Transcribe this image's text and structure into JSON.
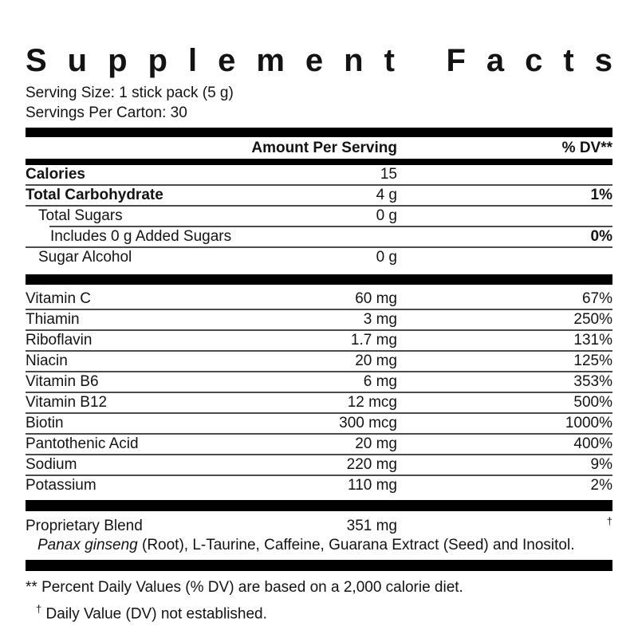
{
  "title": {
    "word1": "Supplement",
    "word2": "Facts"
  },
  "serving_info": {
    "serving_size": "Serving Size: 1 stick pack (5 g)",
    "servings_per_carton": "Servings Per Carton: 30"
  },
  "column_headers": {
    "amount": "Amount Per Serving",
    "dv": "% DV**"
  },
  "nutrient_rows": [
    {
      "name": "Calories",
      "amount": "15",
      "dv": "",
      "bold_name": true,
      "bold_dv": false,
      "indent": 0,
      "divider": "none"
    },
    {
      "name": "Total Carbohydrate",
      "amount": "4 g",
      "dv": "1%",
      "bold_name": true,
      "bold_dv": true,
      "indent": 0,
      "divider": "full"
    },
    {
      "name": "Total Sugars",
      "amount": "0 g",
      "dv": "",
      "bold_name": false,
      "bold_dv": false,
      "indent": 1,
      "divider": "full"
    },
    {
      "name": "Includes 0 g Added Sugars",
      "amount": "",
      "dv": "0%",
      "bold_name": false,
      "bold_dv": true,
      "indent": 2,
      "divider": "indent"
    },
    {
      "name": "Sugar Alcohol",
      "amount": "0 g",
      "dv": "",
      "bold_name": false,
      "bold_dv": false,
      "indent": 1,
      "divider": "full"
    }
  ],
  "vitamin_rows": [
    {
      "name": "Vitamin C",
      "amount": "60 mg",
      "dv": "67%",
      "divider": "none"
    },
    {
      "name": "Thiamin",
      "amount": "3 mg",
      "dv": "250%",
      "divider": "full"
    },
    {
      "name": "Riboflavin",
      "amount": "1.7 mg",
      "dv": "131%",
      "divider": "full"
    },
    {
      "name": "Niacin",
      "amount": "20 mg",
      "dv": "125%",
      "divider": "full"
    },
    {
      "name": "Vitamin B6",
      "amount": "6 mg",
      "dv": "353%",
      "divider": "full"
    },
    {
      "name": "Vitamin B12",
      "amount": "12 mcg",
      "dv": "500%",
      "divider": "full"
    },
    {
      "name": "Biotin",
      "amount": "300 mcg",
      "dv": "1000%",
      "divider": "full"
    },
    {
      "name": "Pantothenic Acid",
      "amount": "20 mg",
      "dv": "400%",
      "divider": "full"
    },
    {
      "name": "Sodium",
      "amount": "220 mg",
      "dv": "9%",
      "divider": "full"
    },
    {
      "name": "Potassium",
      "amount": "110 mg",
      "dv": "2%",
      "divider": "full"
    }
  ],
  "blend": {
    "name": "Proprietary Blend",
    "amount": "351 mg",
    "dv_symbol": "†",
    "ingredients_italic": "Panax ginseng",
    "ingredients_rest": " (Root), L-Taurine, Caffeine, Guarana Extract (Seed) and Inositol."
  },
  "footnotes": {
    "percent_dv": "** Percent Daily Values (% DV) are based on a 2,000 calorie diet.",
    "dagger_symbol": "†",
    "daily_value": " Daily Value (DV) not established."
  },
  "colors": {
    "text": "#131313",
    "bar": "#000000",
    "divider": "#4b4b4b",
    "background": "#ffffff"
  }
}
